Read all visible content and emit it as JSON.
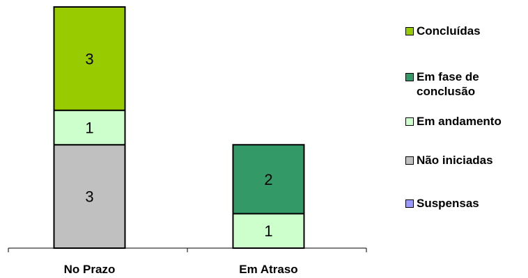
{
  "chart_data": {
    "type": "bar",
    "stacked": true,
    "categories": [
      "No Prazo",
      "Em Atraso"
    ],
    "series": [
      {
        "name": "Concluídas",
        "color": "#99cc00",
        "values": [
          3,
          0
        ]
      },
      {
        "name": "Em fase de conclusão",
        "color": "#339966",
        "values": [
          0,
          2
        ]
      },
      {
        "name": "Em andamento",
        "color": "#ccffcc",
        "values": [
          1,
          1
        ]
      },
      {
        "name": "Não iniciadas",
        "color": "#c0c0c0",
        "values": [
          3,
          0
        ]
      },
      {
        "name": "Suspensas",
        "color": "#9999ff",
        "values": [
          0,
          0
        ]
      }
    ],
    "stack_order_bottom_to_top": [
      "Não iniciadas",
      "Em andamento",
      "Em fase de conclusão",
      "Concluídas",
      "Suspensas"
    ],
    "ylim": [
      0,
      7
    ],
    "grid": false,
    "legend": "right"
  }
}
